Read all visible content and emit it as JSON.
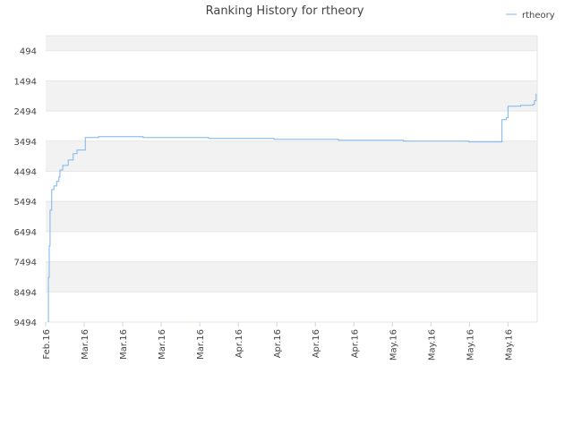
{
  "chart_data": {
    "type": "line",
    "title": "Ranking History for rtheory",
    "x": [
      0.5,
      0.5,
      0.65,
      0.8,
      1.1,
      1.5,
      2,
      2.4,
      2.6,
      3.1,
      4.1,
      5,
      5.7,
      7.2,
      9.6,
      17.7,
      29.6,
      41.5,
      53.2,
      65,
      76.9,
      82.9,
      83.7,
      84,
      86.3,
      88.5,
      88.8,
      89.1
    ],
    "series": [
      {
        "name": "rtheory",
        "color": "#7cb5ec",
        "values": [
          9494,
          8010,
          6970,
          5780,
          5100,
          4980,
          4830,
          4680,
          4450,
          4300,
          4120,
          3910,
          3790,
          3375,
          3345,
          3375,
          3405,
          3435,
          3465,
          3495,
          3520,
          2780,
          2720,
          2335,
          2305,
          2275,
          2155,
          1920
        ]
      }
    ],
    "xlim": [
      0,
      89.3
    ],
    "xticks": [
      {
        "value": 0,
        "label": "Feb.16"
      },
      {
        "value": 7,
        "label": "Mar.16"
      },
      {
        "value": 14,
        "label": "Mar.16"
      },
      {
        "value": 21,
        "label": "Mar.16"
      },
      {
        "value": 28,
        "label": "Mar.16"
      },
      {
        "value": 35,
        "label": "Apr.16"
      },
      {
        "value": 42,
        "label": "Apr.16"
      },
      {
        "value": 49,
        "label": "Apr.16"
      },
      {
        "value": 56,
        "label": "Apr.16"
      },
      {
        "value": 63,
        "label": "May.16"
      },
      {
        "value": 70,
        "label": "May.16"
      },
      {
        "value": 77,
        "label": "May.16"
      },
      {
        "value": 84,
        "label": "May.16"
      }
    ],
    "ylim": [
      9494,
      0
    ],
    "yticks": [
      494,
      1494,
      2494,
      3494,
      4494,
      5494,
      6494,
      7494,
      8494,
      9494
    ],
    "grid": true,
    "bands": true,
    "legend": "top-right"
  }
}
